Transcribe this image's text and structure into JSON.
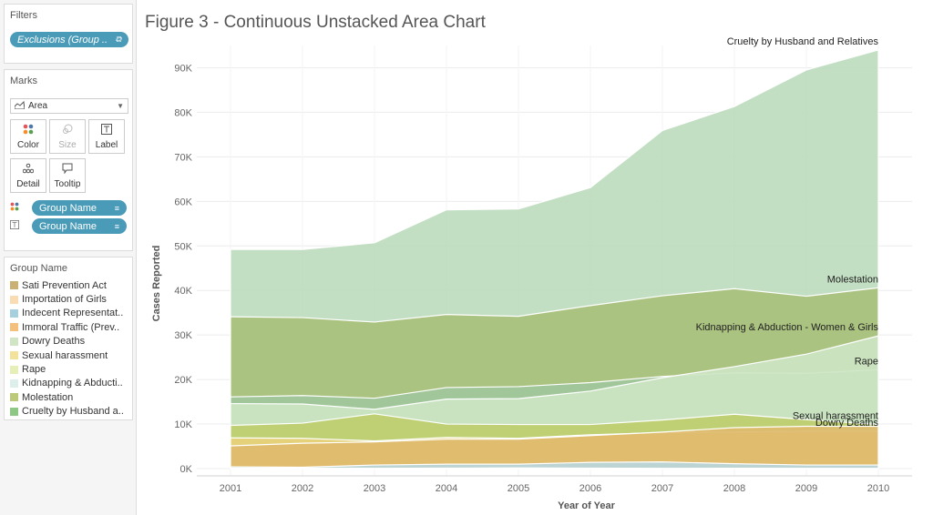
{
  "filters": {
    "title": "Filters",
    "pill_label": "Exclusions (Group ..",
    "pill_icon": "link-icon"
  },
  "marks": {
    "title": "Marks",
    "type_label": "Area",
    "buttons": {
      "color": "Color",
      "size": "Size",
      "label": "Label",
      "detail": "Detail",
      "tooltip": "Tooltip"
    },
    "shelf": [
      {
        "icon": "color-dots-icon",
        "label": "Group Name"
      },
      {
        "icon": "text-label-icon",
        "label": "Group Name"
      }
    ]
  },
  "legend": {
    "title": "Group Name",
    "items": [
      {
        "label": "Sati Prevention Act",
        "color": "#c9b075"
      },
      {
        "label": "Importation of Girls",
        "color": "#f9dcb3"
      },
      {
        "label": "Indecent Representat..",
        "color": "#a6d0de"
      },
      {
        "label": "Immoral Traffic (Prev..",
        "color": "#f5c07e"
      },
      {
        "label": "Dowry Deaths",
        "color": "#cfe5c3"
      },
      {
        "label": "Sexual harassment",
        "color": "#f3e29b"
      },
      {
        "label": "Rape",
        "color": "#e6efb8"
      },
      {
        "label": "Kidnapping & Abducti..",
        "color": "#dcefeb"
      },
      {
        "label": "Molestation",
        "color": "#bcc97b"
      },
      {
        "label": "Cruelty by Husband a..",
        "color": "#8fc787"
      }
    ]
  },
  "chart_data": {
    "type": "area",
    "title": "Figure 3 - Continuous Unstacked Area Chart",
    "xlabel": "Year of Year",
    "ylabel": "Cases Reported",
    "x": [
      2001,
      2002,
      2003,
      2004,
      2005,
      2006,
      2007,
      2008,
      2009,
      2010
    ],
    "ylim": [
      0,
      95000
    ],
    "yticks": [
      0,
      10000,
      20000,
      30000,
      40000,
      50000,
      60000,
      70000,
      80000,
      90000
    ],
    "ytick_labels": [
      "0K",
      "10K",
      "20K",
      "30K",
      "40K",
      "50K",
      "60K",
      "70K",
      "80K",
      "90K"
    ],
    "xtick_labels": [
      "2001",
      "2002",
      "2003",
      "2004",
      "2005",
      "2006",
      "2007",
      "2008",
      "2009",
      "2010"
    ],
    "grid": "horizontal",
    "series": [
      {
        "name": "Cruelty by Husband and Relatives",
        "end_label": "Cruelty by Husband and Relatives",
        "color": "#bcdcbd",
        "values": [
          49200,
          49200,
          50700,
          58100,
          58300,
          63100,
          75900,
          81300,
          89500,
          94000
        ]
      },
      {
        "name": "Molestation",
        "end_label": "Molestation",
        "color": "#a9c07a",
        "values": [
          34100,
          33900,
          32900,
          34600,
          34200,
          36600,
          38800,
          40400,
          38700,
          40600
        ]
      },
      {
        "name": "Rape",
        "end_label": "Rape",
        "color": "#9fc79c",
        "values": [
          16100,
          16400,
          15800,
          18200,
          18400,
          19300,
          20700,
          21500,
          21400,
          22200
        ]
      },
      {
        "name": "Kidnapping & Abduction - Women & Girls",
        "end_label": "Kidnapping & Abduction - Women & Girls",
        "color": "#cde5c4",
        "values": [
          14600,
          14500,
          13300,
          15600,
          15700,
          17400,
          20400,
          22900,
          25700,
          29800
        ]
      },
      {
        "name": "Sexual harassment",
        "end_label": "Sexual harassment",
        "color": "#bccd6a",
        "values": [
          9700,
          10200,
          12300,
          10000,
          9900,
          9900,
          10900,
          12200,
          11000,
          9900
        ]
      },
      {
        "name": "Dowry Deaths",
        "end_label": "Dowry Deaths",
        "color": "#e8d07a",
        "values": [
          6900,
          6800,
          6200,
          7000,
          6800,
          7600,
          8100,
          8200,
          8400,
          8400
        ]
      },
      {
        "name": "Immoral Traffic (Prev..",
        "end_label": "",
        "color": "#dfb96d",
        "values": [
          5100,
          5700,
          6000,
          6600,
          6600,
          7400,
          8200,
          9200,
          9500,
          9500
        ]
      },
      {
        "name": "Indecent Representat..",
        "end_label": "",
        "color": "#b8d6de",
        "values": [
          400,
          300,
          800,
          1000,
          1000,
          1400,
          1500,
          1100,
          800,
          800
        ]
      },
      {
        "name": "Importation of Girls",
        "end_label": "",
        "color": "#f6d7aa",
        "values": [
          100,
          100,
          50,
          100,
          150,
          100,
          60,
          70,
          50,
          40
        ]
      },
      {
        "name": "Sati Prevention Act",
        "end_label": "",
        "color": "#c9b075",
        "values": [
          0,
          0,
          0,
          0,
          0,
          0,
          0,
          0,
          0,
          0
        ]
      }
    ]
  }
}
